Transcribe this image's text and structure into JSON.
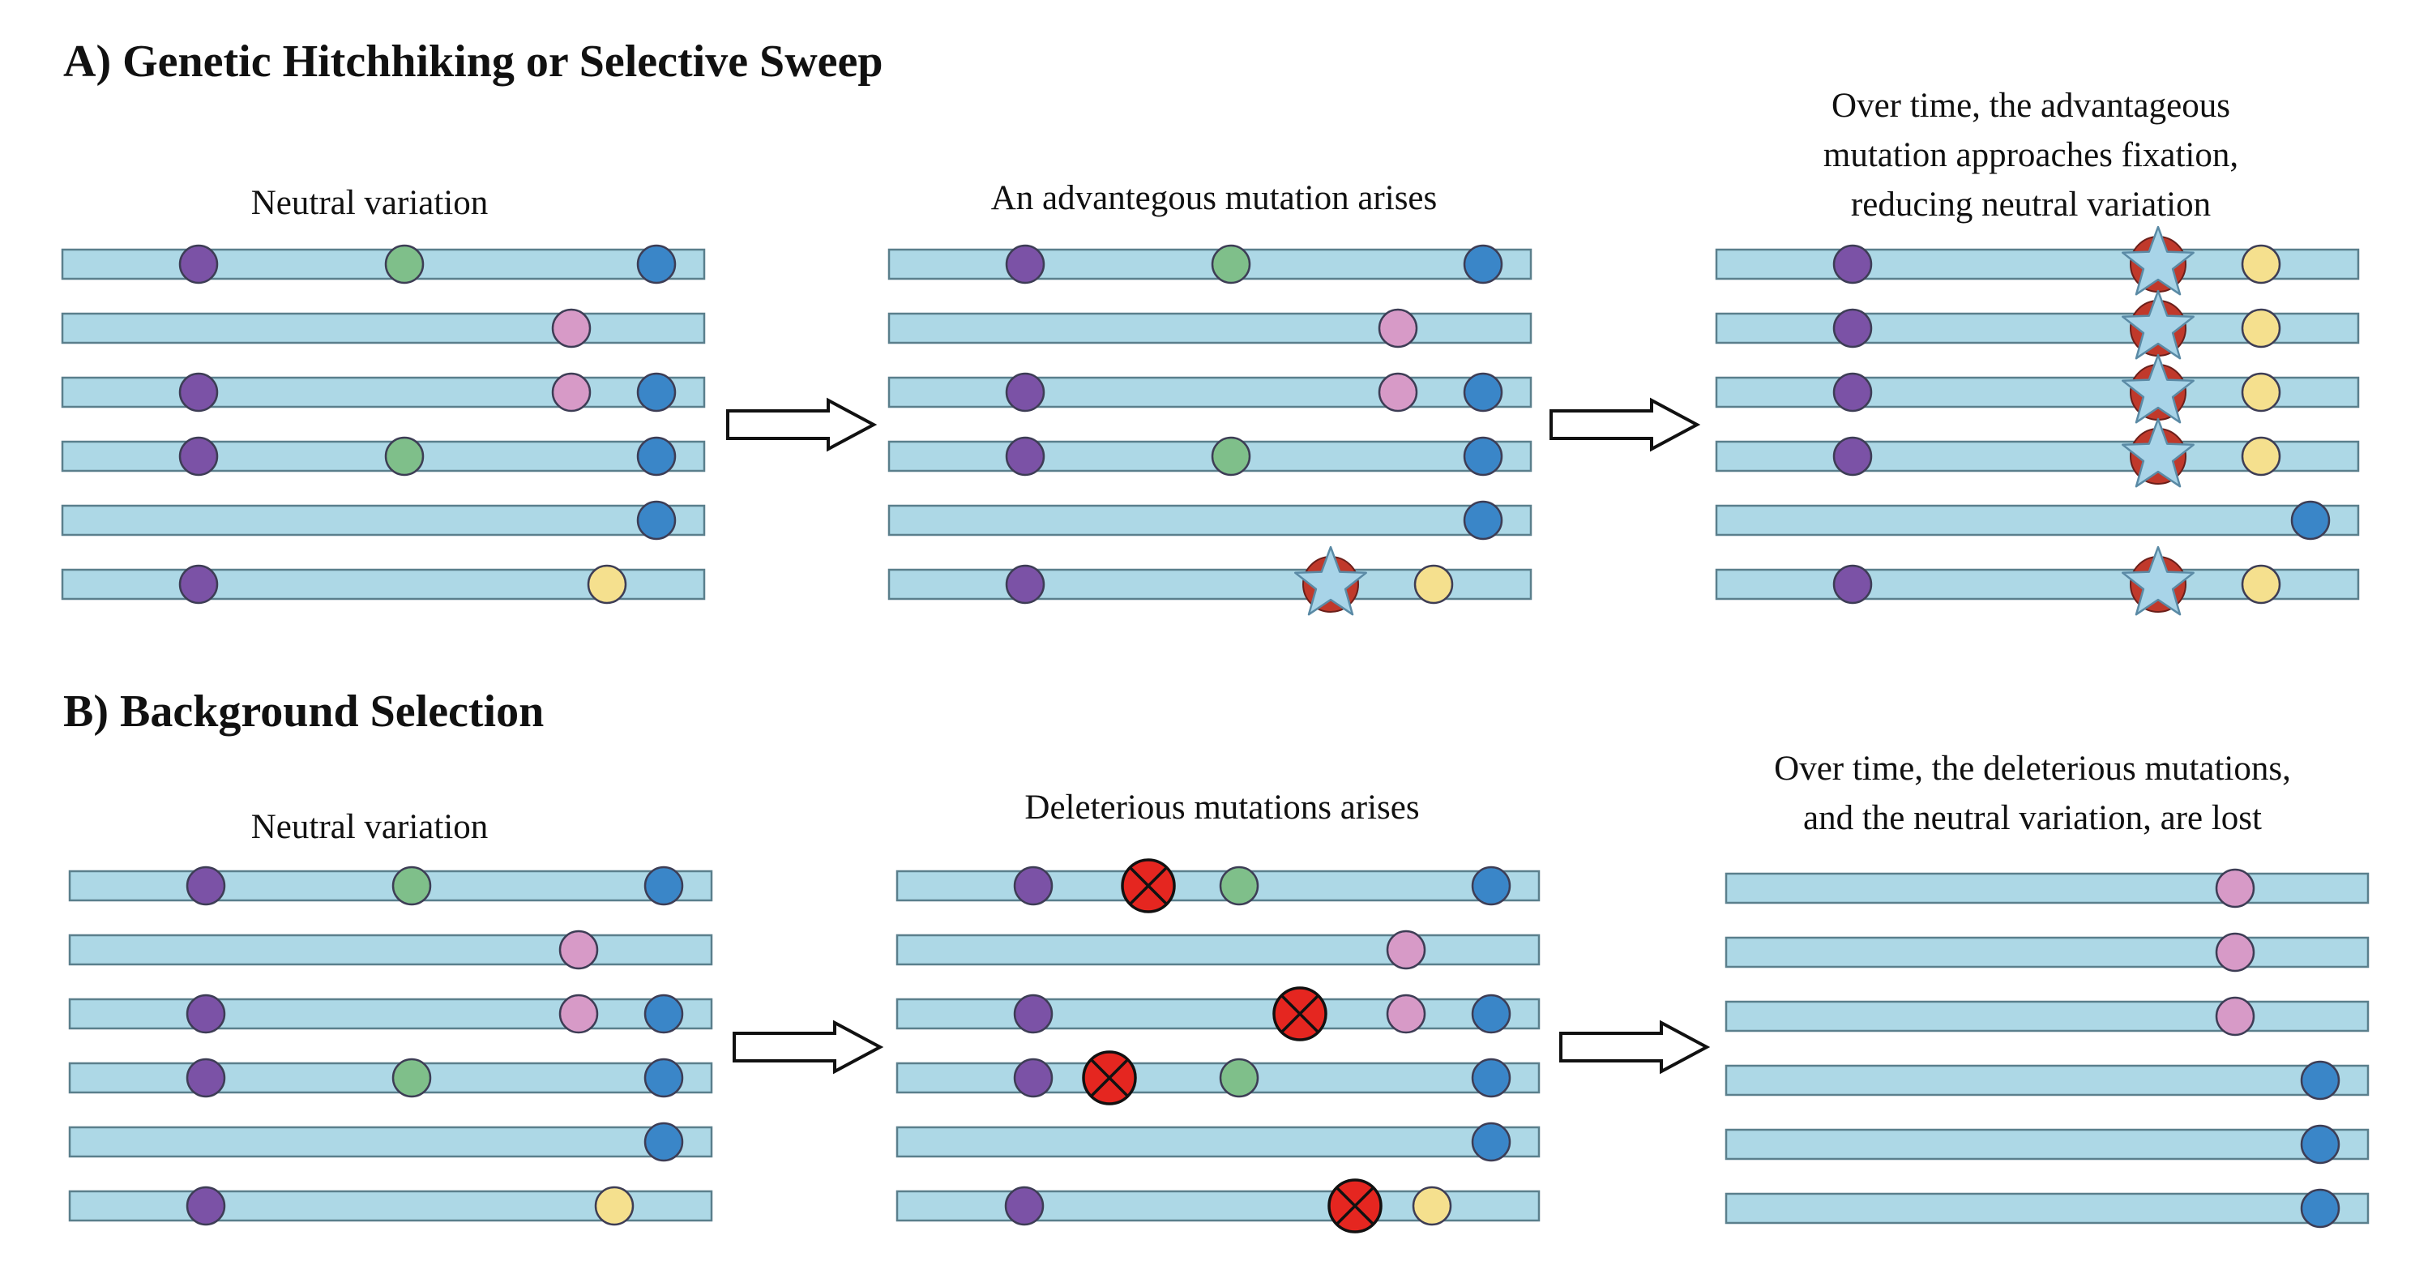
{
  "sections": {
    "a": {
      "title": "A) Genetic Hitchhiking or Selective Sweep",
      "captions": {
        "start": [
          "Neutral variation"
        ],
        "middle": [
          "An advantegous mutation arises"
        ],
        "end": [
          "Over time, the advantageous",
          "mutation approaches fixation,",
          "reducing neutral variation"
        ]
      }
    },
    "b": {
      "title": "B) Background Selection",
      "captions": {
        "start": [
          "Neutral variation"
        ],
        "middle": [
          "Deleterious mutations arises"
        ],
        "end": [
          "Over time, the deleterious mutations,",
          "and the neutral variation, are lost"
        ]
      }
    }
  },
  "colors": {
    "chromosome_fill": "#add8e6",
    "chromosome_stroke": "#5a7f8c",
    "purple": "#7b52a6",
    "green": "#7fbf8a",
    "blue": "#3a86c8",
    "pink": "#d79ac7",
    "yellow": "#f5e08e",
    "star_fill": "#a8d4e8",
    "star_circle": "#c0392b",
    "deleterious": "#e52620"
  },
  "icons": {
    "neutral_mutation": "circle",
    "advantageous_mutation": "star-in-red-circle-icon",
    "deleterious_mutation": "red-circle-x-icon",
    "transition": "right-arrow-icon"
  }
}
